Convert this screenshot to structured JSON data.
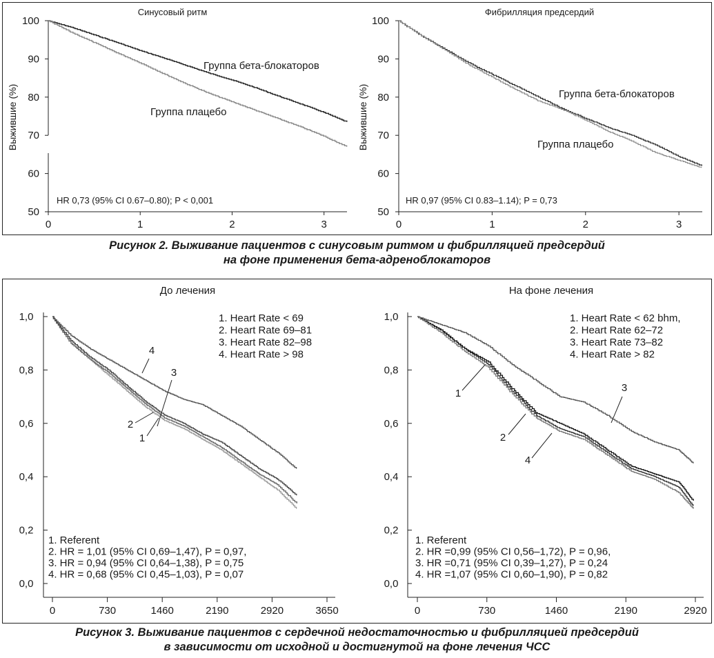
{
  "figure2": {
    "caption": [
      "Рисунок 2.  Выживание пациентов с синусовым ритмом и фибрилляцией предсердий",
      "на фоне применения бета-адреноблокаторов"
    ],
    "chart_data": [
      {
        "type": "line",
        "title": "Синусовый ритм",
        "xlabel": "",
        "ylabel": "Выжившие (%)",
        "xlim": [
          0,
          3.25
        ],
        "ylim": [
          50,
          100
        ],
        "xticks": [
          "0",
          "1",
          "2",
          "3"
        ],
        "yticks": [
          "50",
          "60",
          "70",
          "80",
          "90",
          "100"
        ],
        "annotation": "HR 0,73 (95% CI 0.67–0.80); P < 0,001",
        "series": [
          {
            "name": "Группа бета-блокаторов",
            "color": "#222222",
            "x": [
              0,
              0.25,
              0.5,
              0.75,
              1.0,
              1.25,
              1.5,
              1.75,
              2.0,
              2.25,
              2.5,
              2.75,
              3.0,
              3.25
            ],
            "y": [
              100,
              98.3,
              96.3,
              94.3,
              92.2,
              90.3,
              88.3,
              86.3,
              84.5,
              82.5,
              80.3,
              78.2,
              76.0,
              73.5
            ]
          },
          {
            "name": "Группа плацебо",
            "color": "#888888",
            "x": [
              0,
              0.25,
              0.5,
              0.75,
              1.0,
              1.25,
              1.5,
              1.75,
              2.0,
              2.25,
              2.5,
              2.75,
              3.0,
              3.25
            ],
            "y": [
              100,
              97.0,
              94.3,
              91.6,
              89.0,
              86.2,
              83.5,
              81.0,
              78.8,
              76.6,
              74.4,
              72.2,
              69.8,
              67.0
            ]
          }
        ]
      },
      {
        "type": "line",
        "title": "Фибрилляция предсердий",
        "xlabel": "",
        "ylabel": "Выжившие (%)",
        "xlim": [
          0,
          3.25
        ],
        "ylim": [
          50,
          100
        ],
        "xticks": [
          "0",
          "1",
          "2",
          "3"
        ],
        "yticks": [
          "50",
          "60",
          "70",
          "80",
          "90",
          "100"
        ],
        "annotation": "HR 0,97 (95% CI 0.83–1.14); P = 0,73",
        "series": [
          {
            "name": "Группа бета-блокаторов",
            "color": "#222222",
            "x": [
              0,
              0.25,
              0.5,
              0.75,
              1.0,
              1.25,
              1.5,
              1.75,
              2.0,
              2.25,
              2.5,
              2.75,
              3.0,
              3.25
            ],
            "y": [
              100,
              96.0,
              92.5,
              89.0,
              86.0,
              83.0,
              80.0,
              77.0,
              74.5,
              72.0,
              70.0,
              67.5,
              64.5,
              62.0
            ]
          },
          {
            "name": "Группа плацебо",
            "color": "#888888",
            "x": [
              0,
              0.25,
              0.5,
              0.75,
              1.0,
              1.25,
              1.5,
              1.75,
              2.0,
              2.25,
              2.5,
              2.75,
              3.0,
              3.25
            ],
            "y": [
              100,
              96.0,
              92.3,
              88.5,
              85.3,
              82.0,
              79.0,
              76.8,
              74.0,
              71.0,
              68.5,
              65.5,
              63.5,
              61.5
            ]
          }
        ]
      }
    ]
  },
  "figure3": {
    "caption": [
      "Рисунок 3.  Выживание пациентов с сердечной недостаточностью и фибрилляцией предсердий",
      "в зависимости от исходной и достигнутой на фоне лечения ЧСС"
    ],
    "chart_data": [
      {
        "type": "line",
        "title": "До лечения",
        "xlabel": "",
        "ylabel": "",
        "xlim": [
          0,
          3650
        ],
        "ylim": [
          0,
          1.0
        ],
        "xticks": [
          "0",
          "730",
          "1460",
          "2190",
          "2920",
          "3650"
        ],
        "yticks": [
          "0,0",
          "0,2",
          "0,4",
          "0,6",
          "0,8",
          "1,0"
        ],
        "legend": [
          "1. Heart Rate < 69",
          "2. Heart Rate 69–81",
          "3. Heart Rate 82–98",
          "4. Heart Rate > 98"
        ],
        "stats": [
          "1. Referent",
          "2. HR = 1,01 (95% CI 0,69–1,47), P = 0,97,",
          "3. HR = 0,94 (95% CI 0,64–1,38), P = 0,75",
          "4. HR = 0,68 (95% CI 0,45–1,03), P = 0,07"
        ],
        "series": [
          {
            "name": "1",
            "color": "#999999",
            "x": [
              0,
              250,
              500,
              750,
              1000,
              1250,
              1500,
              1750,
              2000,
              2250,
              2500,
              2750,
              3000,
              3250
            ],
            "y": [
              1.0,
              0.9,
              0.84,
              0.78,
              0.72,
              0.66,
              0.61,
              0.58,
              0.54,
              0.5,
              0.45,
              0.4,
              0.35,
              0.28
            ]
          },
          {
            "name": "2",
            "color": "#666666",
            "x": [
              0,
              250,
              500,
              750,
              1000,
              1250,
              1500,
              1750,
              2000,
              2250,
              2500,
              2750,
              3000,
              3250
            ],
            "y": [
              1.0,
              0.9,
              0.84,
              0.79,
              0.73,
              0.67,
              0.62,
              0.59,
              0.55,
              0.51,
              0.46,
              0.41,
              0.37,
              0.3
            ]
          },
          {
            "name": "3",
            "color": "#444444",
            "x": [
              0,
              250,
              500,
              750,
              1000,
              1250,
              1500,
              1750,
              2000,
              2250,
              2500,
              2750,
              3000,
              3250
            ],
            "y": [
              1.0,
              0.91,
              0.85,
              0.8,
              0.74,
              0.68,
              0.63,
              0.6,
              0.56,
              0.53,
              0.48,
              0.43,
              0.39,
              0.33
            ]
          },
          {
            "name": "4",
            "color": "#555555",
            "x": [
              0,
              250,
              500,
              750,
              1000,
              1250,
              1500,
              1750,
              2000,
              2250,
              2500,
              2750,
              3000,
              3250
            ],
            "y": [
              1.0,
              0.93,
              0.88,
              0.84,
              0.8,
              0.76,
              0.72,
              0.69,
              0.67,
              0.63,
              0.59,
              0.54,
              0.49,
              0.43
            ]
          }
        ]
      },
      {
        "type": "line",
        "title": "На фоне лечения",
        "xlabel": "",
        "ylabel": "",
        "xlim": [
          0,
          2920
        ],
        "ylim": [
          0,
          1.0
        ],
        "xticks": [
          "0",
          "730",
          "1460",
          "2190",
          "2920"
        ],
        "yticks": [
          "0,0",
          "0,2",
          "0,4",
          "0,6",
          "0,8",
          "1,0"
        ],
        "legend": [
          "1. Heart Rate < 62 bhm,",
          "2. Heart Rate 62–72",
          "3. Heart Rate 73–82",
          "4. Heart Rate > 82"
        ],
        "stats": [
          "1. Referent",
          "2. HR =0,99 (95% CI 0,56–1,72), P = 0,96,",
          "3. HR =0,71 (95% CI 0,39–1,27), P = 0,24",
          "4. HR =1,07 (95% CI 0,60–1,90), P = 0,82"
        ],
        "series": [
          {
            "name": "1",
            "color": "#333333",
            "x": [
              0,
              250,
              500,
              750,
              1000,
              1250,
              1500,
              1750,
              2000,
              2250,
              2500,
              2750,
              2900
            ],
            "y": [
              1.0,
              0.95,
              0.88,
              0.82,
              0.72,
              0.63,
              0.58,
              0.55,
              0.49,
              0.43,
              0.4,
              0.36,
              0.29
            ]
          },
          {
            "name": "2",
            "color": "#111111",
            "x": [
              0,
              250,
              500,
              750,
              1000,
              1250,
              1500,
              1750,
              2000,
              2250,
              2500,
              2750,
              2900
            ],
            "y": [
              1.0,
              0.95,
              0.88,
              0.83,
              0.73,
              0.64,
              0.6,
              0.56,
              0.5,
              0.44,
              0.41,
              0.38,
              0.31
            ]
          },
          {
            "name": "3",
            "color": "#555555",
            "x": [
              0,
              250,
              500,
              750,
              1000,
              1250,
              1500,
              1750,
              2000,
              2250,
              2500,
              2750,
              2900
            ],
            "y": [
              1.0,
              0.97,
              0.94,
              0.89,
              0.82,
              0.76,
              0.7,
              0.68,
              0.63,
              0.57,
              0.53,
              0.5,
              0.45
            ]
          },
          {
            "name": "4",
            "color": "#777777",
            "x": [
              0,
              250,
              500,
              750,
              1000,
              1250,
              1500,
              1750,
              2000,
              2250,
              2500,
              2750,
              2900
            ],
            "y": [
              1.0,
              0.94,
              0.87,
              0.81,
              0.71,
              0.62,
              0.57,
              0.54,
              0.48,
              0.42,
              0.39,
              0.34,
              0.28
            ]
          }
        ]
      }
    ]
  }
}
